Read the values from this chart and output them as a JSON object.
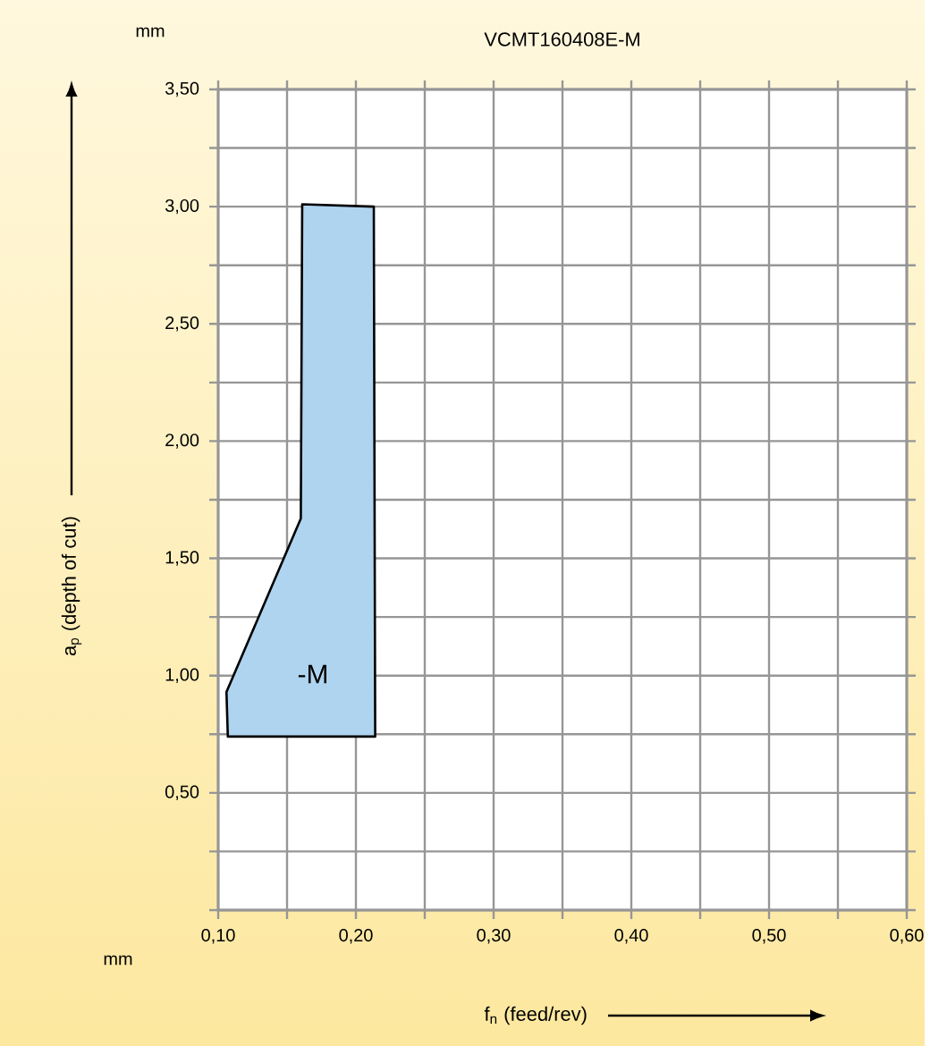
{
  "chart_data": {
    "type": "area",
    "title": "VCMT160408E-M",
    "xlabel": "f$_{n}$ (feed/rev)",
    "ylabel": "a$_{p}$ (depth of cut)",
    "series": [
      {
        "color": "#aed4f0",
        "x": [
          0.107,
          0.106,
          0.16,
          0.161,
          0.213,
          0.214,
          0.107
        ],
        "values": [
          0.74,
          0.93,
          1.67,
          3.01,
          3.0,
          0.74,
          0.74
        ]
      }
    ],
    "annotations": [
      "-M",
      "mm",
      "mm"
    ],
    "xlim": [
      0.1,
      0.6
    ],
    "ylim": [
      0,
      3.5
    ],
    "xticks": [
      {
        "value": 0.1,
        "label": "0,10"
      },
      {
        "value": 0.15,
        "label": null
      },
      {
        "value": 0.2,
        "label": "0,20"
      },
      {
        "value": 0.25,
        "label": null
      },
      {
        "value": 0.3,
        "label": "0,30"
      },
      {
        "value": 0.35,
        "label": null
      },
      {
        "value": 0.4,
        "label": "0,40"
      },
      {
        "value": 0.45,
        "label": null
      },
      {
        "value": 0.5,
        "label": "0,50"
      },
      {
        "value": 0.55,
        "label": null
      },
      {
        "value": 0.6,
        "label": "0,60"
      }
    ],
    "yticks": [
      {
        "value": 0,
        "label": null
      },
      {
        "value": 0.25,
        "label": null
      },
      {
        "value": 0.5,
        "label": "0,50"
      },
      {
        "value": 0.75,
        "label": null
      },
      {
        "value": 1.0,
        "label": "1,00"
      },
      {
        "value": 1.25,
        "label": null
      },
      {
        "value": 1.5,
        "label": "1,50"
      },
      {
        "value": 1.75,
        "label": null
      },
      {
        "value": 2.0,
        "label": "2,00"
      },
      {
        "value": 2.25,
        "label": null
      },
      {
        "value": 2.5,
        "label": "2,50"
      },
      {
        "value": 2.75,
        "label": null
      },
      {
        "value": 3.0,
        "label": "3,00"
      },
      {
        "value": 3.25,
        "label": null
      },
      {
        "value": 3.5,
        "label": "3,50"
      }
    ],
    "grid": true
  }
}
